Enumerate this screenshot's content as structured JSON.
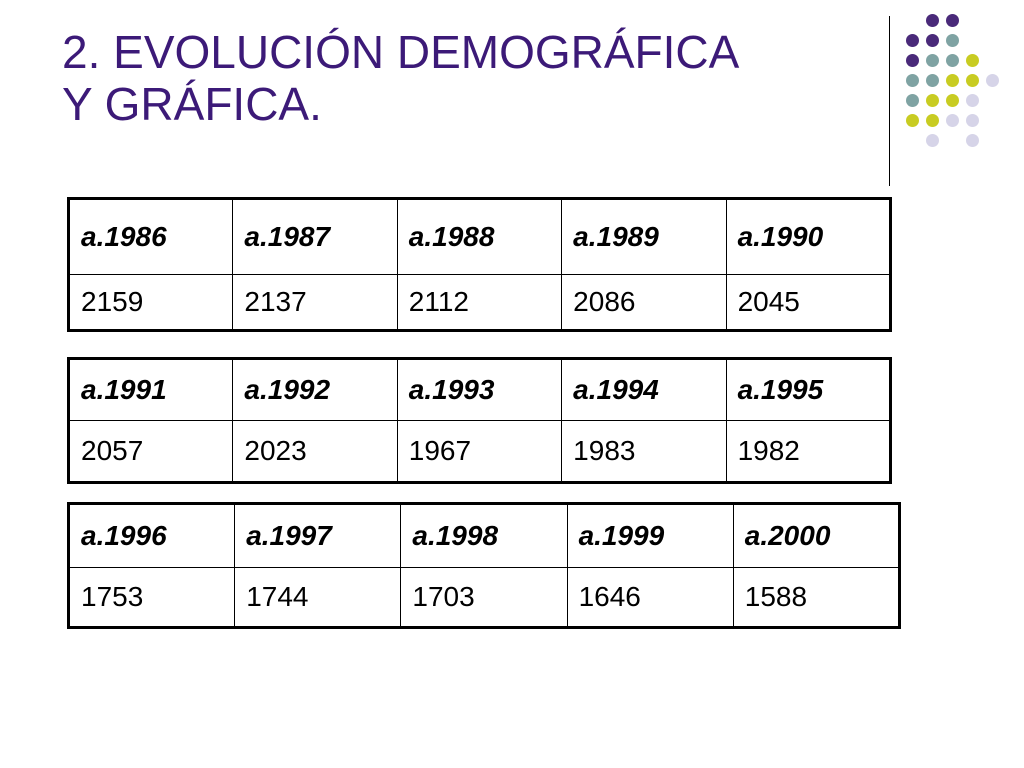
{
  "title": {
    "line1": "2. EVOLUCIÓN DEMOGRÁFICA",
    "line2": "Y GRÁFICA."
  },
  "colors": {
    "title": "#3c1a78",
    "dot_purple": "#4a2a7a",
    "dot_teal": "#7fa3a3",
    "dot_olive": "#c8cc22",
    "dot_lavender": "#d6d4e8"
  },
  "tables": [
    {
      "years": [
        "a.1986",
        "a.1987",
        "a.1988",
        "a.1989",
        "a.1990"
      ],
      "values": [
        "2159",
        "2137",
        "2112",
        "2086",
        "2045"
      ]
    },
    {
      "years": [
        "a.1991",
        "a.1992",
        "a.1993",
        "a.1994",
        "a.1995"
      ],
      "values": [
        "2057",
        "2023",
        "1967",
        "1983",
        "1982"
      ]
    },
    {
      "years": [
        "a.1996",
        "a.1997",
        "a.1998",
        "a.1999",
        "a.2000"
      ],
      "values": [
        "1753",
        "1744",
        "1703",
        "1646",
        "1588"
      ]
    }
  ]
}
